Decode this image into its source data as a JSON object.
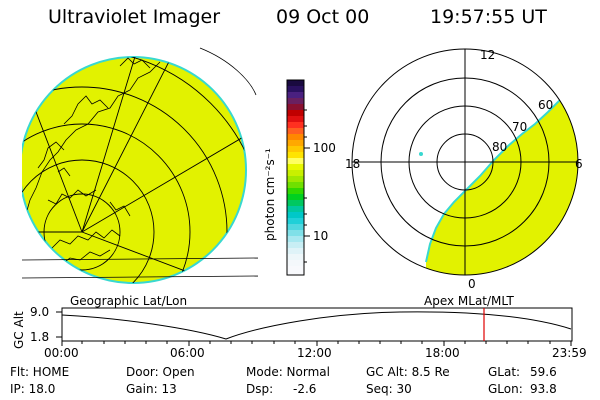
{
  "header": {
    "instrument": "Ultraviolet Imager",
    "date": "09 Oct 00",
    "time": "19:57:55 UT"
  },
  "colorbar": {
    "unit_label": "photon cm⁻²s⁻¹",
    "tick_100": "100",
    "tick_10": "10"
  },
  "polar_plot": {
    "mlt_labels": {
      "top": "12",
      "left": "18",
      "right": "6",
      "bottom": "0"
    },
    "lat_labels": [
      "60",
      "70",
      "80"
    ]
  },
  "map_labels": {
    "geographic": "Geographic Lat/Lon",
    "apex": "Apex MLat/MLT"
  },
  "altitude_plot": {
    "axis_title": "GC Alt",
    "ytick_top": "9.0",
    "ytick_bottom": "1.8",
    "xticks": [
      "00:00",
      "06:00",
      "12:00",
      "18:00",
      "23:59"
    ]
  },
  "footer": {
    "flt": "Flt: HOME",
    "ip": "IP: 18.0",
    "door": "Door: Open",
    "gain": "Gain: 13",
    "mode": "Mode: Normal",
    "dsp_label": "Dsp:",
    "dsp_value": "-2.6",
    "gc_alt": "GC Alt: 8.5 Re",
    "seq": "Seq: 30",
    "glat": "GLat:",
    "glat_value": "59.6",
    "glon": "GLon:",
    "glon_value": "93.8"
  },
  "colors": {
    "emission": "#e2f200",
    "edge": "#38d8d0"
  }
}
